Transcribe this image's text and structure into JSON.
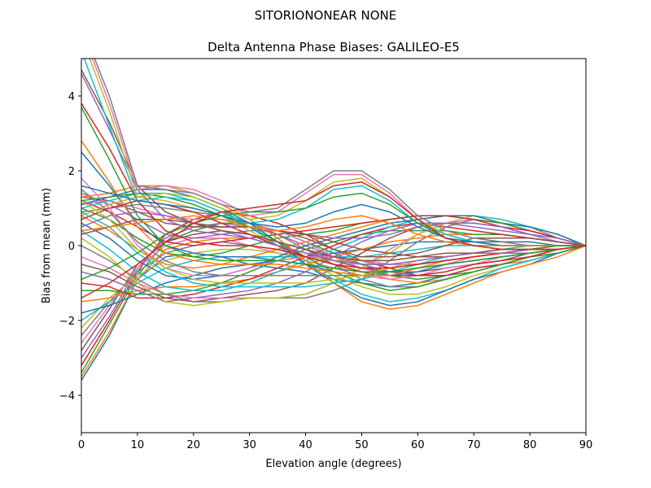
{
  "chart_data": {
    "type": "line",
    "suptitle": "SITORIONONEAR   NONE",
    "title": "Delta Antenna Phase Biases: GALILEO-E5",
    "xlabel": "Elevation angle (degrees)",
    "ylabel": "Bias from mean (mm)",
    "xlim": [
      0,
      90
    ],
    "ylim": [
      -5,
      5
    ],
    "xticks": [
      0,
      10,
      20,
      30,
      40,
      50,
      60,
      70,
      80,
      90
    ],
    "yticks": [
      -4,
      -2,
      0,
      2,
      4
    ],
    "ytick_labels": [
      "−4",
      "−2",
      "0",
      "2",
      "4"
    ],
    "grid": false,
    "legend": "none",
    "x": [
      0,
      5,
      10,
      15,
      20,
      25,
      30,
      35,
      40,
      45,
      50,
      55,
      60,
      65,
      70,
      75,
      80,
      85,
      90
    ],
    "palette": [
      "#1f77b4",
      "#ff7f0e",
      "#2ca02c",
      "#d62728",
      "#9467bd",
      "#8c564b",
      "#e377c2",
      "#7f7f7f",
      "#bcbd22",
      "#17becf"
    ],
    "series": [
      {
        "values": [
          -3.6,
          -2.4,
          -0.9,
          -0.3,
          -0.2,
          -0.3,
          -0.5,
          -0.6,
          -0.7,
          -0.9,
          -1.0,
          -1.1,
          -1.0,
          -0.8,
          -0.6,
          -0.5,
          -0.3,
          -0.2,
          0
        ]
      },
      {
        "values": [
          -3.5,
          -2.3,
          -0.9,
          -0.1,
          0.1,
          0.2,
          0.2,
          0.0,
          -0.2,
          -0.5,
          -0.7,
          -0.9,
          -1.0,
          -0.9,
          -0.7,
          -0.5,
          -0.4,
          -0.2,
          0
        ]
      },
      {
        "values": [
          -3.4,
          -2.1,
          -0.8,
          0.1,
          0.4,
          0.6,
          0.6,
          0.4,
          0.1,
          -0.2,
          -0.5,
          -0.8,
          -0.9,
          -0.8,
          -0.7,
          -0.5,
          -0.3,
          -0.2,
          0
        ]
      },
      {
        "values": [
          -3.2,
          -2.0,
          -0.7,
          0.3,
          0.7,
          0.9,
          0.8,
          0.6,
          0.3,
          -0.1,
          -0.4,
          -0.6,
          -0.8,
          -0.8,
          -0.6,
          -0.5,
          -0.3,
          -0.2,
          0
        ]
      },
      {
        "values": [
          -3.0,
          -1.9,
          -0.6,
          0.2,
          0.5,
          0.6,
          0.5,
          0.3,
          0.0,
          -0.3,
          -0.5,
          -0.7,
          -0.8,
          -0.7,
          -0.5,
          -0.4,
          -0.3,
          -0.1,
          0
        ]
      },
      {
        "values": [
          -2.8,
          -1.7,
          -0.5,
          0.1,
          0.3,
          0.4,
          0.3,
          0.1,
          -0.1,
          -0.4,
          -0.6,
          -0.7,
          -0.7,
          -0.6,
          -0.5,
          -0.4,
          -0.2,
          -0.1,
          0
        ]
      },
      {
        "values": [
          -2.6,
          -1.6,
          -0.6,
          0.0,
          0.2,
          0.2,
          0.0,
          -0.2,
          -0.4,
          -0.6,
          -0.8,
          -0.9,
          -0.8,
          -0.6,
          -0.5,
          -0.3,
          -0.2,
          -0.1,
          0
        ]
      },
      {
        "values": [
          -2.4,
          -1.5,
          -0.7,
          -0.2,
          0.0,
          0.1,
          0.0,
          -0.1,
          -0.3,
          -0.4,
          -0.5,
          -0.5,
          -0.5,
          -0.4,
          -0.3,
          -0.2,
          -0.2,
          -0.1,
          0
        ]
      },
      {
        "values": [
          -2.2,
          -1.4,
          -0.8,
          -0.4,
          -0.2,
          -0.1,
          -0.1,
          -0.2,
          -0.3,
          -0.4,
          -0.4,
          -0.4,
          -0.3,
          -0.3,
          -0.2,
          -0.2,
          -0.1,
          -0.1,
          0
        ]
      },
      {
        "values": [
          -2.0,
          -1.5,
          -1.0,
          -0.6,
          -0.4,
          -0.3,
          -0.3,
          -0.3,
          -0.3,
          -0.3,
          -0.3,
          -0.2,
          -0.1,
          0.0,
          0.0,
          0.0,
          0.0,
          0.0,
          0
        ]
      },
      {
        "values": [
          -1.8,
          -1.6,
          -1.3,
          -1.0,
          -0.8,
          -0.6,
          -0.5,
          -0.4,
          -0.3,
          -0.2,
          -0.1,
          0.0,
          0.1,
          0.1,
          0.1,
          0.1,
          0.1,
          0.0,
          0
        ]
      },
      {
        "values": [
          -1.5,
          -1.4,
          -1.2,
          -1.1,
          -1.1,
          -1.0,
          -0.9,
          -0.7,
          -0.5,
          -0.3,
          -0.1,
          0.1,
          0.2,
          0.3,
          0.3,
          0.3,
          0.2,
          0.1,
          0
        ]
      },
      {
        "values": [
          -1.2,
          -1.2,
          -1.3,
          -1.3,
          -1.2,
          -1.0,
          -0.7,
          -0.4,
          -0.1,
          0.1,
          0.3,
          0.4,
          0.4,
          0.4,
          0.3,
          0.3,
          0.2,
          0.1,
          0
        ]
      },
      {
        "values": [
          -1.0,
          -1.1,
          -1.4,
          -1.4,
          -1.3,
          -1.1,
          -0.9,
          -0.6,
          -0.3,
          0.0,
          0.3,
          0.5,
          0.6,
          0.5,
          0.4,
          0.3,
          0.2,
          0.1,
          0
        ]
      },
      {
        "values": [
          -0.7,
          -0.9,
          -1.2,
          -1.5,
          -1.4,
          -1.3,
          -1.2,
          -1.0,
          -0.7,
          -0.3,
          0.1,
          0.4,
          0.6,
          0.6,
          0.5,
          0.4,
          0.3,
          0.1,
          0
        ]
      },
      {
        "values": [
          -0.5,
          -0.7,
          -1.1,
          -1.4,
          -1.5,
          -1.4,
          -1.3,
          -1.2,
          -1.0,
          -0.6,
          -0.2,
          0.2,
          0.5,
          0.6,
          0.6,
          0.5,
          0.3,
          0.2,
          0
        ]
      },
      {
        "values": [
          -0.3,
          -0.6,
          -1.0,
          -1.3,
          -1.4,
          -1.4,
          -1.4,
          -1.4,
          -1.3,
          -1.0,
          -0.6,
          -0.1,
          0.3,
          0.6,
          0.7,
          0.6,
          0.4,
          0.2,
          0
        ]
      },
      {
        "values": [
          0.0,
          -0.4,
          -0.9,
          -1.3,
          -1.5,
          -1.5,
          -1.4,
          -1.4,
          -1.4,
          -1.2,
          -0.9,
          -0.4,
          0.1,
          0.5,
          0.7,
          0.6,
          0.5,
          0.2,
          0
        ]
      },
      {
        "values": [
          0.2,
          -0.3,
          -1.0,
          -1.5,
          -1.6,
          -1.5,
          -1.4,
          -1.4,
          -1.3,
          -1.0,
          -0.6,
          -0.2,
          0.3,
          0.6,
          0.8,
          0.7,
          0.5,
          0.3,
          0
        ]
      },
      {
        "values": [
          0.4,
          -0.1,
          -0.7,
          -1.1,
          -1.2,
          -1.2,
          -1.0,
          -0.7,
          -0.4,
          -0.1,
          0.2,
          0.5,
          0.7,
          0.8,
          0.8,
          0.7,
          0.5,
          0.3,
          0
        ]
      },
      {
        "values": [
          0.6,
          0.2,
          -0.4,
          -0.8,
          -0.9,
          -0.8,
          -0.6,
          -0.3,
          0.0,
          0.2,
          0.4,
          0.6,
          0.7,
          0.8,
          0.8,
          0.6,
          0.5,
          0.3,
          0
        ]
      },
      {
        "values": [
          0.8,
          0.4,
          -0.1,
          -0.5,
          -0.6,
          -0.5,
          -0.3,
          -0.1,
          0.1,
          0.3,
          0.5,
          0.7,
          0.8,
          0.8,
          0.7,
          0.6,
          0.4,
          0.2,
          0
        ]
      },
      {
        "values": [
          1.0,
          0.7,
          0.2,
          -0.2,
          -0.3,
          -0.2,
          0.0,
          0.2,
          0.3,
          0.4,
          0.6,
          0.7,
          0.8,
          0.8,
          0.7,
          0.6,
          0.4,
          0.2,
          0
        ]
      },
      {
        "values": [
          1.2,
          0.9,
          0.5,
          0.1,
          0.0,
          0.1,
          0.2,
          0.3,
          0.4,
          0.5,
          0.6,
          0.7,
          0.8,
          0.8,
          0.7,
          0.5,
          0.4,
          0.2,
          0
        ]
      },
      {
        "values": [
          1.4,
          1.1,
          0.7,
          0.3,
          0.2,
          0.3,
          0.4,
          0.4,
          0.3,
          0.2,
          0.2,
          0.3,
          0.5,
          0.6,
          0.6,
          0.5,
          0.3,
          0.2,
          0
        ]
      },
      {
        "values": [
          1.3,
          1.2,
          0.9,
          0.6,
          0.5,
          0.5,
          0.5,
          0.4,
          0.2,
          -0.1,
          -0.3,
          -0.3,
          -0.2,
          0.0,
          0.2,
          0.2,
          0.2,
          0.1,
          0
        ]
      },
      {
        "values": [
          1.1,
          1.2,
          1.0,
          0.8,
          0.7,
          0.7,
          0.6,
          0.4,
          0.1,
          -0.3,
          -0.6,
          -0.8,
          -0.7,
          -0.5,
          -0.3,
          -0.2,
          -0.1,
          0.0,
          0
        ]
      },
      {
        "values": [
          0.9,
          1.0,
          1.1,
          1.0,
          0.9,
          0.8,
          0.6,
          0.3,
          -0.1,
          -0.5,
          -0.9,
          -1.1,
          -1.1,
          -0.9,
          -0.7,
          -0.5,
          -0.3,
          -0.1,
          0
        ]
      },
      {
        "values": [
          0.8,
          1.1,
          1.3,
          1.2,
          1.0,
          0.8,
          0.4,
          0.0,
          -0.4,
          -0.8,
          -1.1,
          -1.3,
          -1.3,
          -1.1,
          -0.8,
          -0.6,
          -0.4,
          -0.2,
          0
        ]
      },
      {
        "values": [
          1.0,
          1.2,
          1.4,
          1.4,
          1.2,
          0.9,
          0.5,
          0.0,
          -0.5,
          -0.9,
          -1.3,
          -1.5,
          -1.4,
          -1.2,
          -0.9,
          -0.6,
          -0.4,
          -0.2,
          0
        ]
      },
      {
        "values": [
          1.1,
          1.3,
          1.5,
          1.5,
          1.3,
          1.0,
          0.6,
          0.1,
          -0.5,
          -1.0,
          -1.4,
          -1.6,
          -1.5,
          -1.2,
          -0.9,
          -0.7,
          -0.5,
          -0.2,
          0
        ]
      },
      {
        "values": [
          1.3,
          1.4,
          1.6,
          1.6,
          1.4,
          1.1,
          0.7,
          0.2,
          -0.4,
          -1.0,
          -1.5,
          -1.7,
          -1.6,
          -1.3,
          -1.0,
          -0.7,
          -0.5,
          -0.3,
          0
        ]
      },
      {
        "values": [
          1.2,
          1.3,
          1.4,
          1.3,
          1.1,
          0.8,
          0.5,
          0.1,
          -0.3,
          -0.7,
          -1.0,
          -1.2,
          -1.1,
          -0.9,
          -0.7,
          -0.5,
          -0.3,
          -0.2,
          0
        ]
      },
      {
        "values": [
          0.7,
          1.0,
          1.2,
          1.1,
          0.9,
          0.6,
          0.3,
          0.0,
          -0.3,
          -0.5,
          -0.7,
          -0.8,
          -0.8,
          -0.7,
          -0.5,
          -0.4,
          -0.3,
          -0.1,
          0
        ]
      },
      {
        "values": [
          0.5,
          0.8,
          0.9,
          0.8,
          0.6,
          0.4,
          0.2,
          0.0,
          -0.2,
          -0.3,
          -0.4,
          -0.5,
          -0.5,
          -0.4,
          -0.3,
          -0.2,
          -0.2,
          -0.1,
          0
        ]
      },
      {
        "values": [
          0.3,
          0.5,
          0.7,
          0.7,
          0.6,
          0.5,
          0.5,
          0.4,
          0.3,
          0.1,
          -0.1,
          -0.2,
          -0.3,
          -0.3,
          -0.2,
          -0.2,
          -0.1,
          -0.1,
          0
        ]
      },
      {
        "values": [
          1.8,
          1.0,
          0.0,
          -0.6,
          -0.8,
          -0.8,
          -0.6,
          -0.4,
          -0.3,
          -0.3,
          -0.4,
          -0.5,
          -0.5,
          -0.4,
          -0.3,
          -0.2,
          -0.1,
          -0.1,
          0
        ]
      },
      {
        "values": [
          1.5,
          0.9,
          0.1,
          -0.4,
          -0.7,
          -0.8,
          -0.8,
          -0.8,
          -0.8,
          -0.8,
          -0.8,
          -0.7,
          -0.6,
          -0.5,
          -0.4,
          -0.3,
          -0.2,
          -0.1,
          0
        ]
      },
      {
        "values": [
          1.2,
          0.7,
          -0.1,
          -0.6,
          -0.9,
          -1.0,
          -1.0,
          -1.0,
          -1.0,
          -0.9,
          -0.8,
          -0.6,
          -0.4,
          -0.3,
          -0.2,
          -0.1,
          -0.1,
          0.0,
          0
        ]
      },
      {
        "values": [
          0.9,
          0.5,
          -0.2,
          -0.7,
          -1.0,
          -1.1,
          -1.1,
          -1.1,
          -1.1,
          -1.0,
          -0.9,
          -0.7,
          -0.5,
          -0.3,
          -0.2,
          -0.1,
          0.0,
          0.0,
          0
        ]
      },
      {
        "values": [
          2.5,
          1.6,
          0.6,
          0.0,
          -0.2,
          -0.3,
          -0.3,
          -0.4,
          -0.5,
          -0.7,
          -0.8,
          -0.8,
          -0.7,
          -0.5,
          -0.4,
          -0.3,
          -0.2,
          -0.1,
          0
        ]
      },
      {
        "values": [
          2.8,
          1.7,
          0.5,
          -0.2,
          -0.4,
          -0.5,
          -0.5,
          -0.5,
          -0.6,
          -0.7,
          -0.8,
          -0.8,
          -0.6,
          -0.4,
          -0.3,
          -0.2,
          -0.1,
          -0.1,
          0
        ]
      },
      {
        "values": [
          3.7,
          2.3,
          0.8,
          0.0,
          -0.3,
          -0.4,
          -0.4,
          -0.4,
          -0.5,
          -0.6,
          -0.7,
          -0.7,
          -0.6,
          -0.5,
          -0.4,
          -0.3,
          -0.2,
          -0.1,
          0
        ]
      },
      {
        "values": [
          3.8,
          2.6,
          1.2,
          0.4,
          0.1,
          0.0,
          0.0,
          -0.1,
          -0.3,
          -0.5,
          -0.6,
          -0.6,
          -0.5,
          -0.4,
          -0.3,
          -0.2,
          -0.1,
          -0.1,
          0
        ]
      },
      {
        "values": [
          4.6,
          3.1,
          1.5,
          0.7,
          0.4,
          0.3,
          0.2,
          0.0,
          -0.2,
          -0.4,
          -0.5,
          -0.5,
          -0.4,
          -0.3,
          -0.2,
          -0.2,
          -0.1,
          0.0,
          0
        ]
      },
      {
        "values": [
          4.7,
          3.3,
          1.6,
          0.9,
          0.6,
          0.4,
          0.3,
          0.1,
          -0.1,
          -0.3,
          -0.4,
          -0.4,
          -0.3,
          -0.2,
          -0.2,
          -0.1,
          -0.1,
          0.0,
          0
        ]
      },
      {
        "values": [
          5.8,
          3.8,
          1.5,
          1.6,
          1.5,
          1.2,
          0.8,
          0.9,
          1.4,
          1.9,
          1.9,
          1.4,
          0.7,
          0.3,
          0.1,
          0.0,
          0.0,
          0.0,
          0
        ]
      },
      {
        "values": [
          5.9,
          4.0,
          1.6,
          1.5,
          1.4,
          1.1,
          0.9,
          1.0,
          1.5,
          2.0,
          2.0,
          1.5,
          0.8,
          0.4,
          0.2,
          0.1,
          0.0,
          0.0,
          0
        ]
      },
      {
        "values": [
          5.6,
          3.6,
          1.3,
          1.4,
          1.3,
          1.0,
          0.7,
          0.8,
          1.2,
          1.7,
          1.8,
          1.3,
          0.7,
          0.3,
          0.1,
          0.0,
          0.0,
          0.0,
          0
        ]
      },
      {
        "values": [
          5.2,
          3.2,
          1.2,
          1.3,
          1.2,
          0.9,
          0.6,
          0.7,
          1.0,
          1.5,
          1.6,
          1.2,
          0.6,
          0.3,
          0.1,
          0.0,
          0.0,
          0.0,
          0
        ]
      },
      {
        "values": [
          1.6,
          1.4,
          1.2,
          1.1,
          1.0,
          0.8,
          0.6,
          0.5,
          0.6,
          0.9,
          1.1,
          0.9,
          0.5,
          0.2,
          0.1,
          0.0,
          0.0,
          0.0,
          0
        ]
      },
      {
        "values": [
          0.4,
          0.5,
          0.6,
          0.7,
          0.8,
          0.7,
          0.5,
          0.4,
          0.5,
          0.7,
          0.8,
          0.6,
          0.3,
          0.1,
          0.0,
          0.0,
          0.0,
          0.0,
          0
        ]
      },
      {
        "values": [
          -0.9,
          -0.6,
          -0.2,
          0.3,
          0.6,
          0.8,
          0.9,
          0.9,
          1.0,
          1.3,
          1.4,
          1.1,
          0.6,
          0.2,
          0.0,
          -0.1,
          -0.1,
          0.0,
          0
        ]
      },
      {
        "values": [
          -1.4,
          -1.0,
          -0.5,
          0.1,
          0.6,
          0.9,
          1.0,
          1.1,
          1.2,
          1.6,
          1.7,
          1.3,
          0.7,
          0.2,
          0.0,
          -0.1,
          -0.1,
          -0.1,
          0
        ]
      }
    ]
  }
}
